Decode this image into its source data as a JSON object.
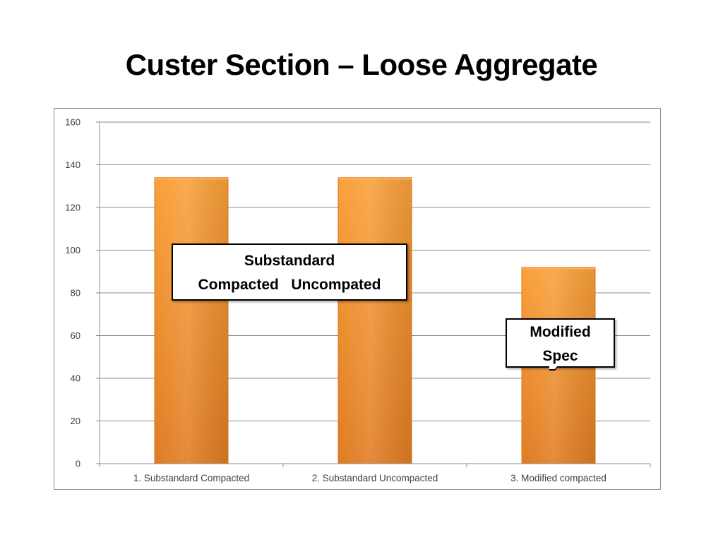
{
  "title": "Custer Section – Loose Aggregate",
  "chart_data": {
    "type": "bar",
    "title": "",
    "xlabel": "",
    "ylabel": "",
    "categories": [
      "1. Substandard Compacted",
      "2. Substandard Uncompacted",
      "3. Modified compacted"
    ],
    "values": [
      134,
      134,
      92
    ],
    "ylim": [
      0,
      160
    ],
    "yticks": [
      0,
      20,
      40,
      60,
      80,
      100,
      120,
      140,
      160
    ],
    "grid": true,
    "legend": "none",
    "bar_color_top": "#f9a03a",
    "bar_color_bottom": "#e07c22",
    "bar_edge_color": "#d9781f",
    "gridline_color": "#8c8c8c"
  },
  "callouts": {
    "substandard": {
      "line1": "Substandard",
      "line2": "Compacted   Uncompated"
    },
    "modified": {
      "line1": "Modified",
      "line2": "Spec"
    }
  }
}
